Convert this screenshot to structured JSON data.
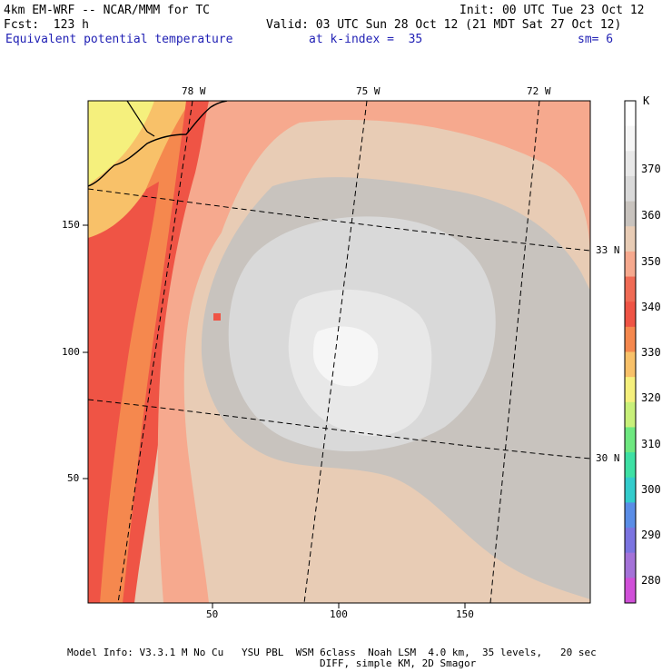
{
  "header": {
    "model_line": "4km EM-WRF -- NCAR/MMM for TC",
    "init_line": "Init: 00 UTC Tue 23 Oct 12",
    "fcst_line": "Fcst:  123 h",
    "valid_line": "Valid: 03 UTC Sun 28 Oct 12 (21 MDT Sat 27 Oct 12)",
    "field_name": "Equivalent potential temperature",
    "k_index": "at k-index =  35",
    "smoothing": "sm= 6"
  },
  "map": {
    "x_ticks": [
      "50",
      "100",
      "150"
    ],
    "y_ticks": [
      "150",
      "100",
      "50"
    ],
    "longitude_labels": [
      "78 W",
      "75 W",
      "72 W"
    ],
    "latitude_labels": [
      "33 N",
      "30 N"
    ]
  },
  "colorbar": {
    "unit": "K",
    "levels": [
      "370",
      "360",
      "350",
      "340",
      "330",
      "320",
      "310",
      "300",
      "290",
      "280"
    ],
    "colors": [
      "#ffffff",
      "#f6f6f6",
      "#e8e8e8",
      "#d9d9d9",
      "#c8c3be",
      "#e8ccb5",
      "#f6a98e",
      "#f06b55",
      "#ef5445",
      "#f5884e",
      "#f8c169",
      "#f5f07d",
      "#c8f07a",
      "#6ee880",
      "#3ee0a4",
      "#33cccc",
      "#5a8de6",
      "#7b74e0",
      "#a472d8",
      "#d050d8"
    ]
  },
  "footer": {
    "line1": "Model Info: V3.3.1 M No Cu   YSU PBL  WSM 6class  Noah LSM  4.0 km,  35 levels,   20 sec",
    "line2": "DIFF, simple KM, 2D Smagor"
  }
}
